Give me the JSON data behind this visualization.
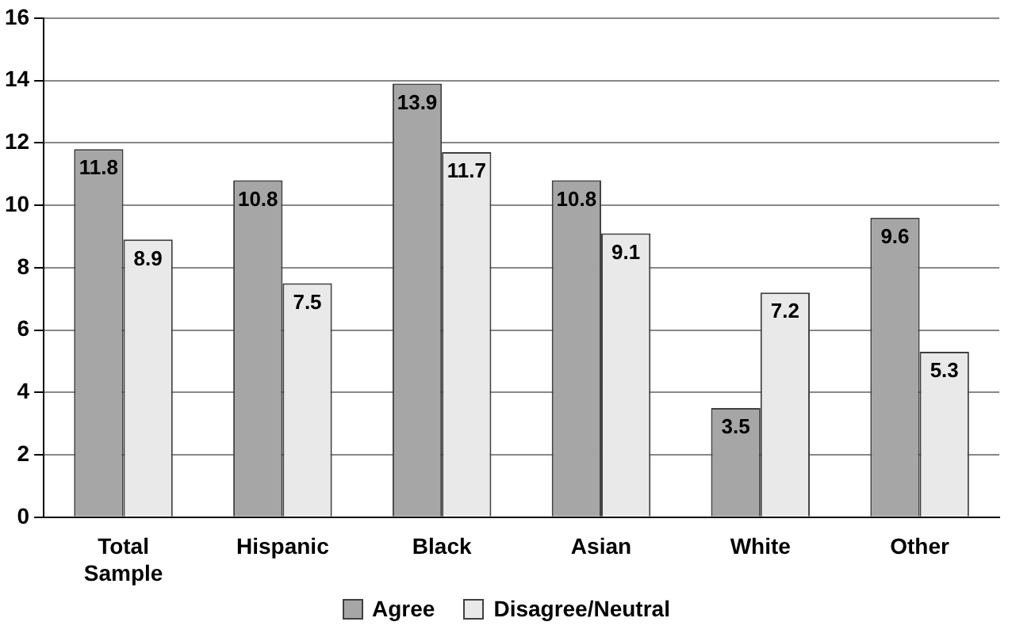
{
  "chart_data": {
    "type": "bar",
    "categories": [
      "Total Sample",
      "Hispanic",
      "Black",
      "Asian",
      "White",
      "Other"
    ],
    "series": [
      {
        "name": "Agree",
        "color": "#a6a6a6",
        "values": [
          11.8,
          10.8,
          13.9,
          10.8,
          3.5,
          9.6
        ]
      },
      {
        "name": "Disagree/Neutral",
        "color": "#e9e9e9",
        "values": [
          8.9,
          7.5,
          11.7,
          9.1,
          7.2,
          5.3
        ]
      }
    ],
    "ylim": [
      0,
      16
    ],
    "yticks": [
      0,
      2,
      4,
      6,
      8,
      10,
      12,
      14,
      16
    ],
    "grid": "y",
    "legend": "bottom",
    "data_labels": true
  }
}
